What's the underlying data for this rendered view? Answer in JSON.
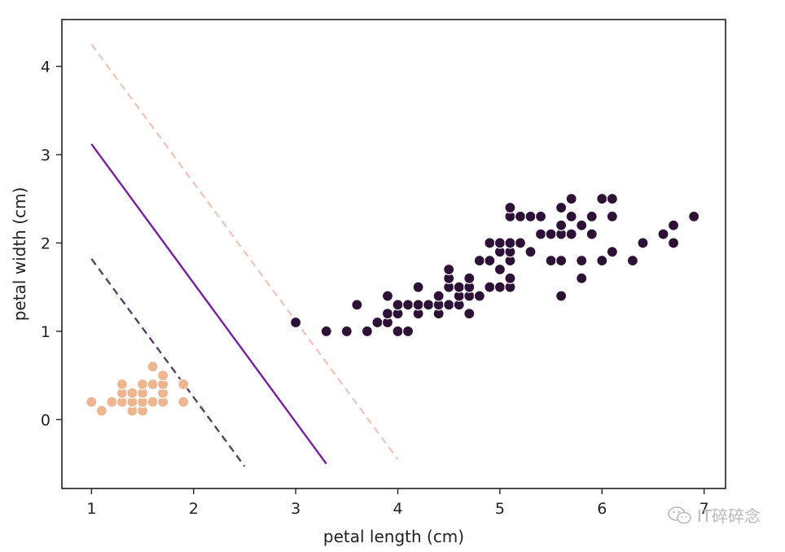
{
  "chart_data": {
    "type": "scatter",
    "title": "",
    "xlabel": "petal length (cm)",
    "ylabel": "petal width (cm)",
    "xlim": [
      0.71,
      7.21
    ],
    "ylim": [
      -0.78,
      4.53
    ],
    "xticks": [
      1,
      2,
      3,
      4,
      5,
      6,
      7
    ],
    "yticks": [
      0,
      1,
      2,
      3,
      4
    ],
    "grid": false,
    "legend": "none",
    "series": [
      {
        "color": "#edb590",
        "points": [
          [
            1.0,
            0.2
          ],
          [
            1.1,
            0.1
          ],
          [
            1.2,
            0.2
          ],
          [
            1.3,
            0.2
          ],
          [
            1.3,
            0.3
          ],
          [
            1.3,
            0.4
          ],
          [
            1.4,
            0.1
          ],
          [
            1.4,
            0.2
          ],
          [
            1.4,
            0.3
          ],
          [
            1.5,
            0.1
          ],
          [
            1.5,
            0.2
          ],
          [
            1.5,
            0.3
          ],
          [
            1.5,
            0.4
          ],
          [
            1.6,
            0.2
          ],
          [
            1.6,
            0.4
          ],
          [
            1.6,
            0.6
          ],
          [
            1.7,
            0.2
          ],
          [
            1.7,
            0.3
          ],
          [
            1.7,
            0.4
          ],
          [
            1.7,
            0.5
          ],
          [
            1.9,
            0.2
          ],
          [
            1.9,
            0.4
          ]
        ]
      },
      {
        "color": "#2d1137",
        "points": [
          [
            3.0,
            1.1
          ],
          [
            3.3,
            1.0
          ],
          [
            3.5,
            1.0
          ],
          [
            3.6,
            1.3
          ],
          [
            3.7,
            1.0
          ],
          [
            3.8,
            1.1
          ],
          [
            3.9,
            1.1
          ],
          [
            3.9,
            1.2
          ],
          [
            3.9,
            1.4
          ],
          [
            4.0,
            1.0
          ],
          [
            4.0,
            1.2
          ],
          [
            4.0,
            1.3
          ],
          [
            4.1,
            1.0
          ],
          [
            4.1,
            1.3
          ],
          [
            4.2,
            1.2
          ],
          [
            4.2,
            1.3
          ],
          [
            4.2,
            1.5
          ],
          [
            4.3,
            1.3
          ],
          [
            4.4,
            1.2
          ],
          [
            4.4,
            1.3
          ],
          [
            4.4,
            1.4
          ],
          [
            4.5,
            1.3
          ],
          [
            4.5,
            1.5
          ],
          [
            4.5,
            1.6
          ],
          [
            4.5,
            1.7
          ],
          [
            4.6,
            1.3
          ],
          [
            4.6,
            1.4
          ],
          [
            4.6,
            1.5
          ],
          [
            4.7,
            1.2
          ],
          [
            4.7,
            1.4
          ],
          [
            4.7,
            1.5
          ],
          [
            4.7,
            1.6
          ],
          [
            4.8,
            1.4
          ],
          [
            4.8,
            1.8
          ],
          [
            4.9,
            1.5
          ],
          [
            4.9,
            1.8
          ],
          [
            4.9,
            2.0
          ],
          [
            5.0,
            1.5
          ],
          [
            5.0,
            1.7
          ],
          [
            5.0,
            1.9
          ],
          [
            5.0,
            2.0
          ],
          [
            5.1,
            1.5
          ],
          [
            5.1,
            1.6
          ],
          [
            5.1,
            1.8
          ],
          [
            5.1,
            1.9
          ],
          [
            5.1,
            2.0
          ],
          [
            5.1,
            2.3
          ],
          [
            5.1,
            2.4
          ],
          [
            5.2,
            2.0
          ],
          [
            5.2,
            2.3
          ],
          [
            5.3,
            1.9
          ],
          [
            5.3,
            2.3
          ],
          [
            5.4,
            2.1
          ],
          [
            5.4,
            2.3
          ],
          [
            5.5,
            1.8
          ],
          [
            5.5,
            2.1
          ],
          [
            5.6,
            1.4
          ],
          [
            5.6,
            1.8
          ],
          [
            5.6,
            2.1
          ],
          [
            5.6,
            2.2
          ],
          [
            5.6,
            2.4
          ],
          [
            5.7,
            2.1
          ],
          [
            5.7,
            2.3
          ],
          [
            5.7,
            2.5
          ],
          [
            5.8,
            1.6
          ],
          [
            5.8,
            1.8
          ],
          [
            5.8,
            2.2
          ],
          [
            5.9,
            2.1
          ],
          [
            5.9,
            2.3
          ],
          [
            6.0,
            1.8
          ],
          [
            6.0,
            2.5
          ],
          [
            6.1,
            1.9
          ],
          [
            6.1,
            2.3
          ],
          [
            6.1,
            2.5
          ],
          [
            6.3,
            1.8
          ],
          [
            6.4,
            2.0
          ],
          [
            6.6,
            2.1
          ],
          [
            6.7,
            2.0
          ],
          [
            6.7,
            2.2
          ],
          [
            6.9,
            2.3
          ]
        ]
      }
    ],
    "lines": [
      {
        "color": "#efc7bb",
        "dashed": true,
        "points": [
          [
            1.0,
            4.25
          ],
          [
            4.0,
            -0.45
          ]
        ]
      },
      {
        "color": "#7a1fa2",
        "dashed": false,
        "points": [
          [
            1.0,
            3.12
          ],
          [
            3.3,
            -0.5
          ]
        ]
      },
      {
        "color": "#5a3e6b",
        "dashed": true,
        "points": [
          [
            1.0,
            1.82
          ],
          [
            2.5,
            -0.53
          ]
        ]
      }
    ]
  },
  "watermark": {
    "text": "IT碎碎念",
    "icon": "wechat-icon"
  }
}
